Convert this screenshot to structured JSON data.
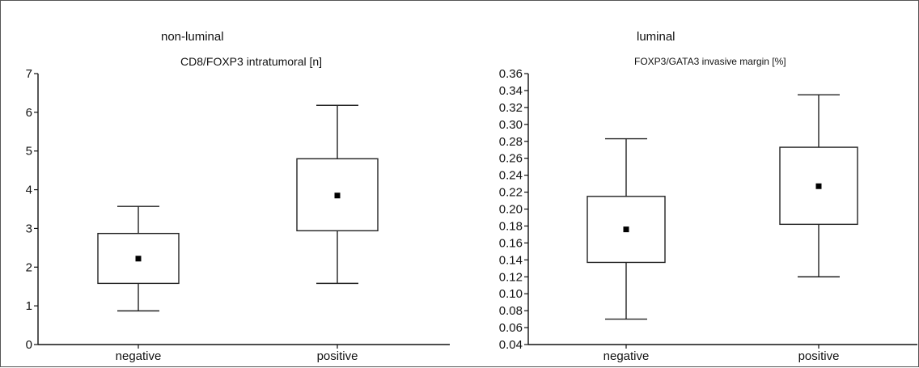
{
  "chart_data": [
    {
      "type": "box",
      "group_label": "non-luminal",
      "title": "CD8/FOXP3 intratumoral [n]",
      "xlabel": "",
      "ylabel": "",
      "ylim": [
        0,
        7
      ],
      "yticks": [
        0,
        1,
        2,
        3,
        4,
        5,
        6,
        7
      ],
      "ytick_labels": [
        "0",
        "1",
        "2",
        "3",
        "4",
        "5",
        "6",
        "7"
      ],
      "grid": false,
      "categories": [
        "negative",
        "positive"
      ],
      "boxes": [
        {
          "category": "negative",
          "whisker_low": 0.87,
          "box_low": 1.58,
          "center": 2.22,
          "box_high": 2.87,
          "whisker_high": 3.57
        },
        {
          "category": "positive",
          "whisker_low": 1.58,
          "box_low": 2.94,
          "center": 3.85,
          "box_high": 4.8,
          "whisker_high": 6.18
        }
      ]
    },
    {
      "type": "box",
      "group_label": "luminal",
      "title": "FOXP3/GATA3 invasive margin [%]",
      "xlabel": "",
      "ylabel": "",
      "ylim": [
        0.04,
        0.36
      ],
      "yticks": [
        0.04,
        0.06,
        0.08,
        0.1,
        0.12,
        0.14,
        0.16,
        0.18,
        0.2,
        0.22,
        0.24,
        0.26,
        0.28,
        0.3,
        0.32,
        0.34,
        0.36
      ],
      "ytick_labels": [
        "0.04",
        "0.06",
        "0.08",
        "0.10",
        "0.12",
        "0.14",
        "0.16",
        "0.18",
        "0.20",
        "0.22",
        "0.24",
        "0.26",
        "0.28",
        "0.30",
        "0.32",
        "0.34",
        "0.36"
      ],
      "grid": false,
      "categories": [
        "negative",
        "positive"
      ],
      "boxes": [
        {
          "category": "negative",
          "whisker_low": 0.07,
          "box_low": 0.137,
          "center": 0.176,
          "box_high": 0.215,
          "whisker_high": 0.283
        },
        {
          "category": "positive",
          "whisker_low": 0.12,
          "box_low": 0.182,
          "center": 0.227,
          "box_high": 0.273,
          "whisker_high": 0.335
        }
      ]
    }
  ],
  "colors": {
    "axis": "#111111",
    "box_stroke": "#222222",
    "box_fill": "#ffffff",
    "center_marker": "#000000"
  }
}
